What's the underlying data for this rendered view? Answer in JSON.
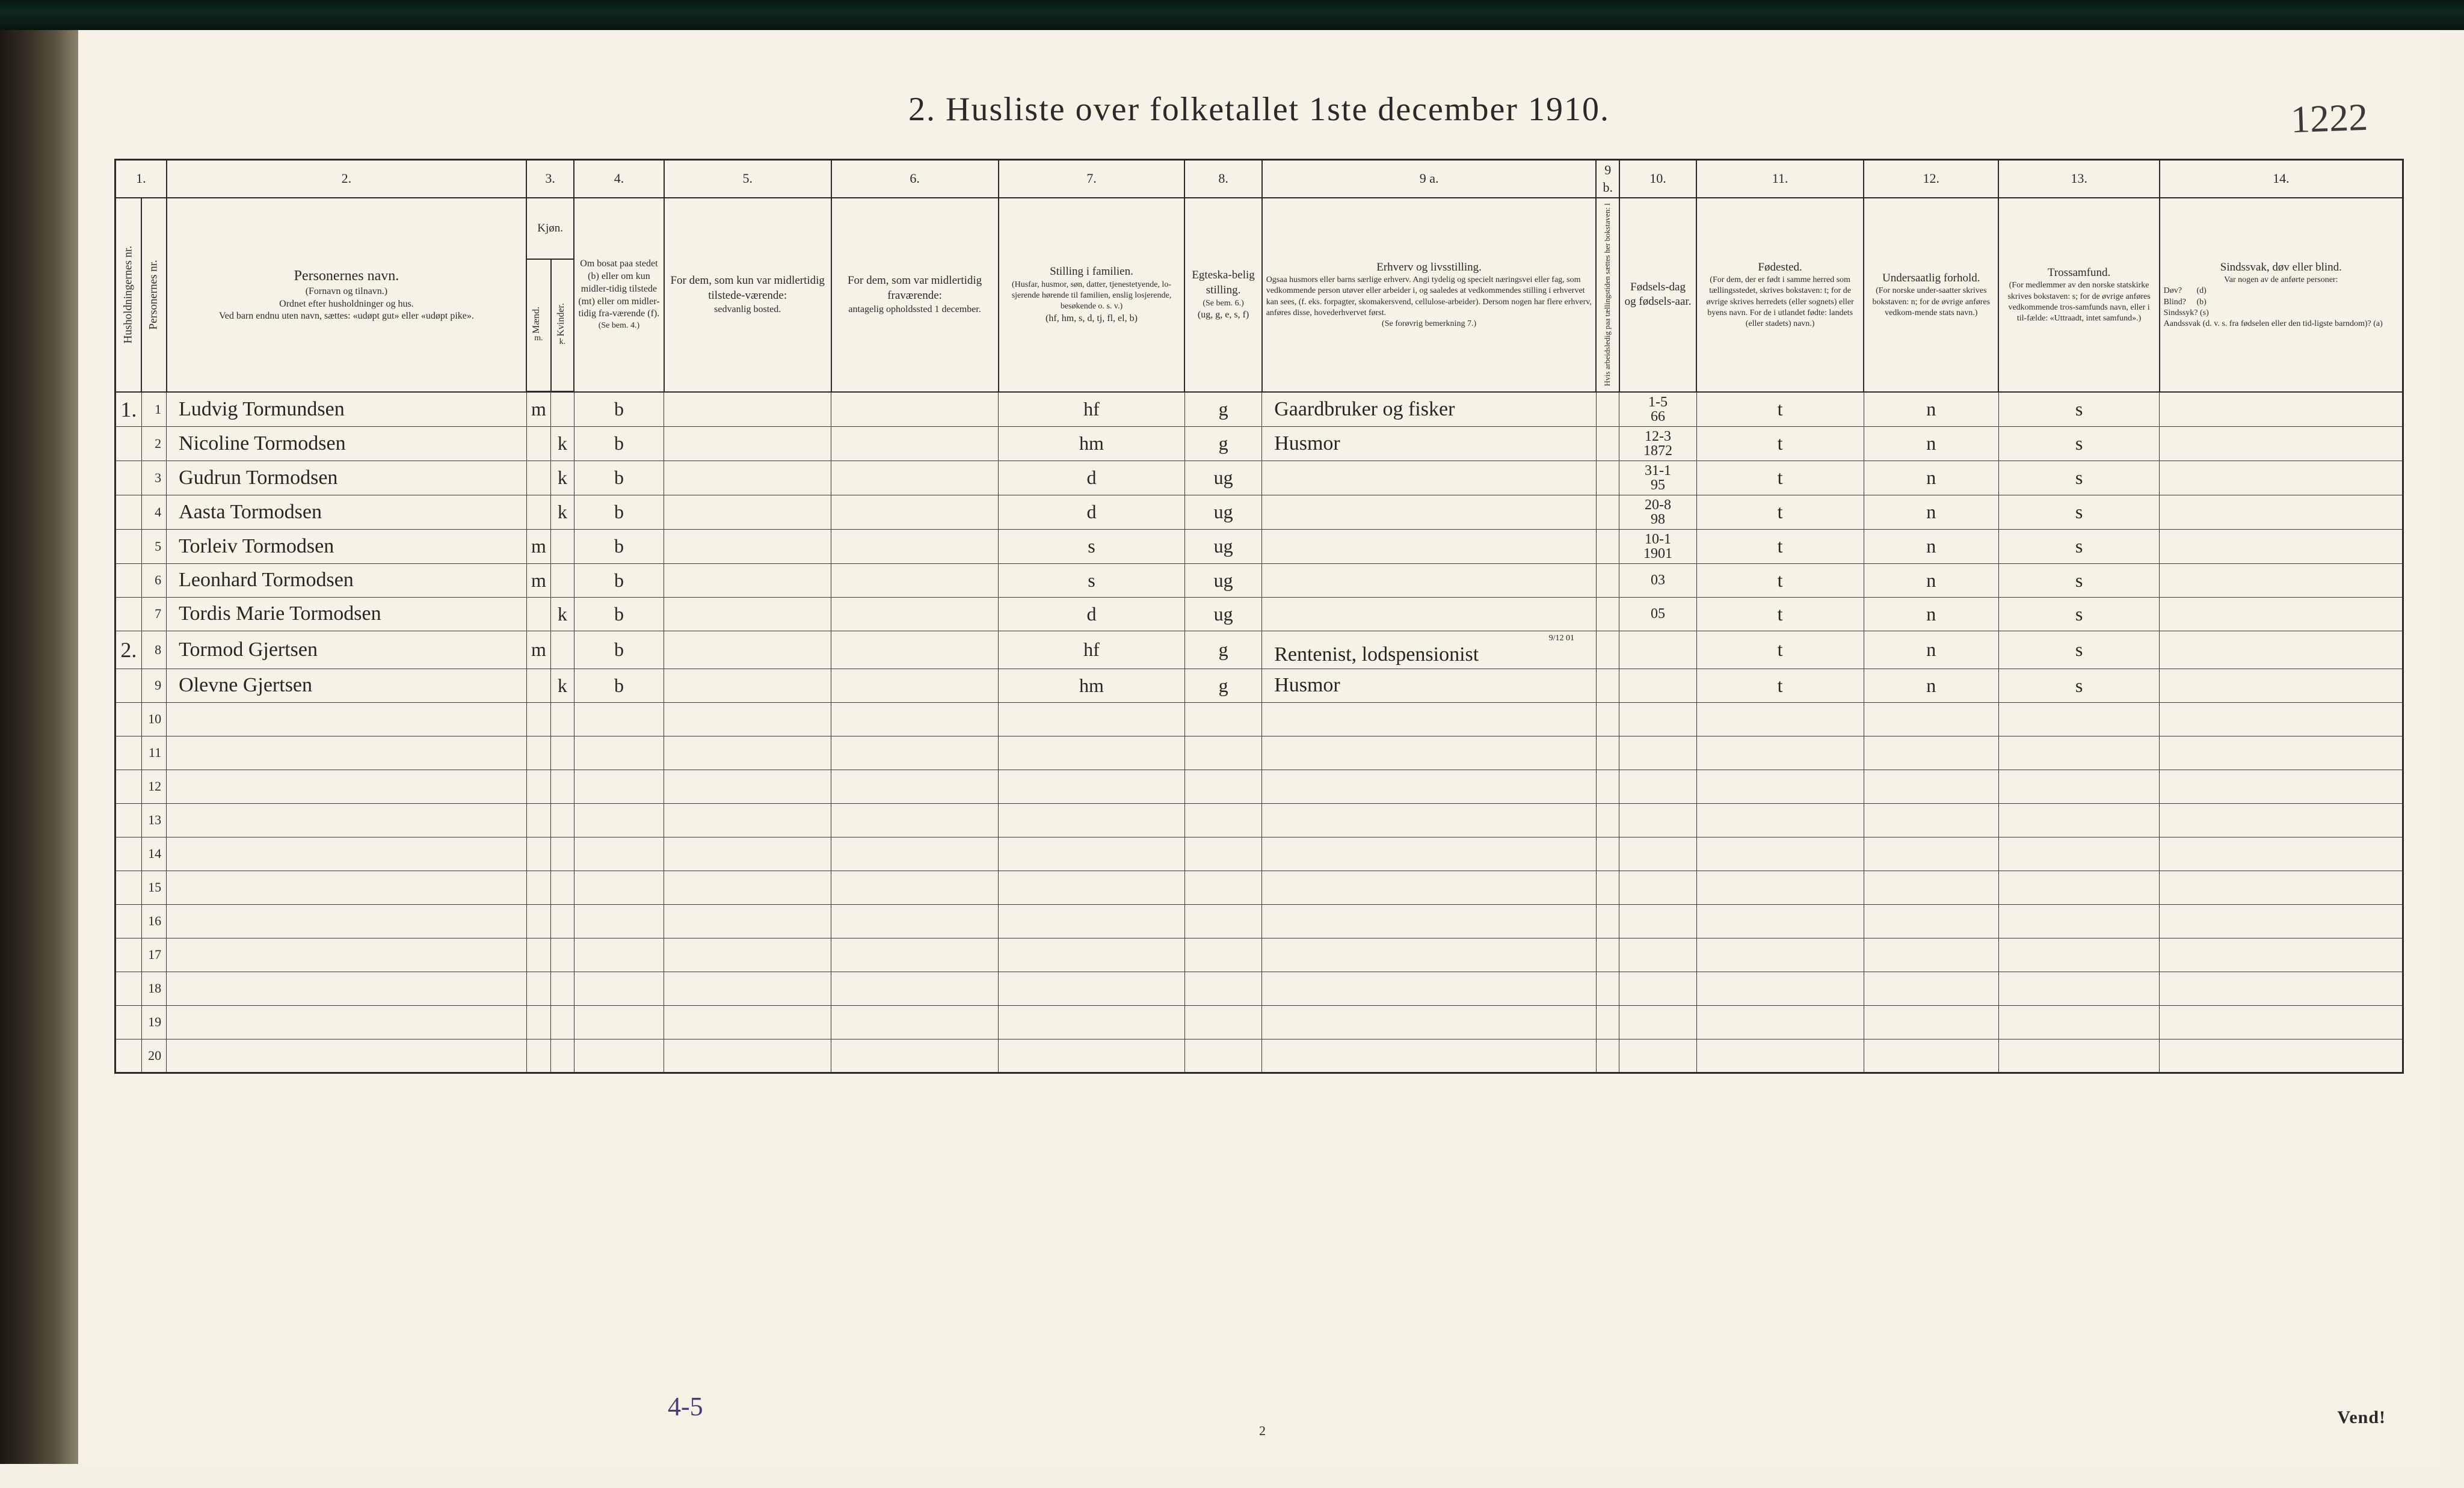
{
  "document": {
    "title": "2.   Husliste over folketallet 1ste december 1910.",
    "page_number_handwritten": "1222",
    "footer_handwritten": "4-5",
    "footer_page": "2",
    "footer_turn": "Vend!",
    "background_color": "#f6f2e6",
    "ink_color": "#2a2a2a",
    "handwriting_color": "#2a2520",
    "title_fontsize": 56
  },
  "columns": {
    "numbers": [
      "1.",
      "2.",
      "3.",
      "4.",
      "5.",
      "6.",
      "7.",
      "8.",
      "9 a.",
      "9 b.",
      "10.",
      "11.",
      "12.",
      "13.",
      "14."
    ],
    "c1a": "Husholdningernes nr.",
    "c1b": "Personernes nr.",
    "c2": {
      "title": "Personernes navn.",
      "sub1": "(Fornavn og tilnavn.)",
      "sub2": "Ordnet efter husholdninger og hus.",
      "sub3": "Ved barn endnu uten navn, sættes: «udøpt gut» eller «udøpt pike»."
    },
    "c3": {
      "title": "Kjøn.",
      "m": "Mænd.",
      "k": "Kvinder.",
      "mk": "m.  k."
    },
    "c4": {
      "title": "Om bosat paa stedet (b) eller om kun midler-tidig tilstede (mt) eller om midler-tidig fra-værende (f).",
      "sub": "(Se bem. 4.)"
    },
    "c5": {
      "title": "For dem, som kun var midlertidig tilstede-værende:",
      "sub": "sedvanlig bosted."
    },
    "c6": {
      "title": "For dem, som var midlertidig fraværende:",
      "sub": "antagelig opholdssted 1 december."
    },
    "c7": {
      "title": "Stilling i familien.",
      "sub1": "(Husfar, husmor, søn, datter, tjenestetyende, lo-sjerende hørende til familien, enslig losjerende, besøkende o. s. v.)",
      "sub2": "(hf, hm, s, d, tj, fl, el, b)"
    },
    "c8": {
      "title": "Egteska-belig stilling.",
      "sub1": "(Se bem. 6.)",
      "sub2": "(ug, g, e, s, f)"
    },
    "c9a": {
      "title": "Erhverv og livsstilling.",
      "sub": "Ogsaa husmors eller barns særlige erhverv. Angi tydelig og specielt næringsvei eller fag, som vedkommende person utøver eller arbeider i, og saaledes at vedkommendes stilling i erhvervet kan sees, (f. eks. forpagter, skomakersvend, cellulose-arbeider). Dersom nogen har flere erhverv, anføres disse, hovederhvervet først.",
      "sub2": "(Se forøvrig bemerkning 7.)"
    },
    "c9b": "Hvis arbeidsledig paa tællingstiden sættes her bokstaven: l",
    "c10": {
      "title": "Fødsels-dag og fødsels-aar."
    },
    "c11": {
      "title": "Fødested.",
      "sub": "(For dem, der er født i samme herred som tællingsstedet, skrives bokstaven: t; for de øvrige skrives herredets (eller sognets) eller byens navn. For de i utlandet fødte: landets (eller stadets) navn.)"
    },
    "c12": {
      "title": "Undersaatlig forhold.",
      "sub": "(For norske under-saatter skrives bokstaven: n; for de øvrige anføres vedkom-mende stats navn.)"
    },
    "c13": {
      "title": "Trossamfund.",
      "sub": "(For medlemmer av den norske statskirke skrives bokstaven: s; for de øvrige anføres vedkommende tros-samfunds navn, eller i til-fælde: «Uttraadt, intet samfund».)"
    },
    "c14": {
      "title": "Sindssvak, døv eller blind.",
      "sub1": "Var nogen av de anførte personer:",
      "sub2": "Døv?       (d)\nBlind?     (b)\nSindssyk? (s)\nAandssvak (d. v. s. fra fødselen eller den tid-ligste barndom)? (a)"
    }
  },
  "rows": [
    {
      "house": "1.",
      "nr": "1",
      "name": "Ludvig Tormundsen",
      "sex_m": "m",
      "sex_k": "",
      "bosat": "b",
      "c5": "",
      "c6": "",
      "stilling": "hf",
      "egte": "g",
      "erhverv": "Gaardbruker og fisker",
      "c9b": "",
      "fod": "1-5\n66",
      "fodested": "t",
      "under": "n",
      "tros": "s",
      "c14": ""
    },
    {
      "house": "",
      "nr": "2",
      "name": "Nicoline Tormodsen",
      "sex_m": "",
      "sex_k": "k",
      "bosat": "b",
      "c5": "",
      "c6": "",
      "stilling": "hm",
      "egte": "g",
      "erhverv": "Husmor",
      "c9b": "",
      "fod": "12-3\n1872",
      "fodested": "t",
      "under": "n",
      "tros": "s",
      "c14": ""
    },
    {
      "house": "",
      "nr": "3",
      "name": "Gudrun Tormodsen",
      "sex_m": "",
      "sex_k": "k",
      "bosat": "b",
      "c5": "",
      "c6": "",
      "stilling": "d",
      "egte": "ug",
      "erhverv": "",
      "c9b": "",
      "fod": "31-1\n95",
      "fodested": "t",
      "under": "n",
      "tros": "s",
      "c14": ""
    },
    {
      "house": "",
      "nr": "4",
      "name": "Aasta Tormodsen",
      "sex_m": "",
      "sex_k": "k",
      "bosat": "b",
      "c5": "",
      "c6": "",
      "stilling": "d",
      "egte": "ug",
      "erhverv": "",
      "c9b": "",
      "fod": "20-8\n98",
      "fodested": "t",
      "under": "n",
      "tros": "s",
      "c14": ""
    },
    {
      "house": "",
      "nr": "5",
      "name": "Torleiv Tormodsen",
      "sex_m": "m",
      "sex_k": "",
      "bosat": "b",
      "c5": "",
      "c6": "",
      "stilling": "s",
      "egte": "ug",
      "erhverv": "",
      "c9b": "",
      "fod": "10-1\n1901",
      "fodested": "t",
      "under": "n",
      "tros": "s",
      "c14": ""
    },
    {
      "house": "",
      "nr": "6",
      "name": "Leonhard  Tormodsen",
      "sex_m": "m",
      "sex_k": "",
      "bosat": "b",
      "c5": "",
      "c6": "",
      "stilling": "s",
      "egte": "ug",
      "erhverv": "",
      "c9b": "",
      "fod": "03",
      "fodested": "t",
      "under": "n",
      "tros": "s",
      "c14": ""
    },
    {
      "house": "",
      "nr": "7",
      "name": "Tordis Marie Tormodsen",
      "sex_m": "",
      "sex_k": "k",
      "bosat": "b",
      "c5": "",
      "c6": "",
      "stilling": "d",
      "egte": "ug",
      "erhverv": "",
      "c9b": "",
      "fod": "05",
      "fodested": "t",
      "under": "n",
      "tros": "s",
      "c14": ""
    },
    {
      "house": "2.",
      "nr": "8",
      "name": "Tormod Gjertsen",
      "sex_m": "m",
      "sex_k": "",
      "bosat": "b",
      "c5": "",
      "c6": "",
      "stilling": "hf",
      "egte": "g",
      "erhverv": "Rentenist, lodspensionist",
      "erhverv_note": "9/12 01",
      "c9b": "",
      "fod": "",
      "fodested": "t",
      "under": "n",
      "tros": "s",
      "c14": ""
    },
    {
      "house": "",
      "nr": "9",
      "name": "Olevne  Gjertsen",
      "sex_m": "",
      "sex_k": "k",
      "bosat": "b",
      "c5": "",
      "c6": "",
      "stilling": "hm",
      "egte": "g",
      "erhverv": "Husmor",
      "c9b": "",
      "fod": "",
      "fodested": "t",
      "under": "n",
      "tros": "s",
      "c14": ""
    },
    {
      "house": "",
      "nr": "10",
      "name": "",
      "sex_m": "",
      "sex_k": "",
      "bosat": "",
      "c5": "",
      "c6": "",
      "stilling": "",
      "egte": "",
      "erhverv": "",
      "c9b": "",
      "fod": "",
      "fodested": "",
      "under": "",
      "tros": "",
      "c14": ""
    },
    {
      "house": "",
      "nr": "11",
      "name": "",
      "sex_m": "",
      "sex_k": "",
      "bosat": "",
      "c5": "",
      "c6": "",
      "stilling": "",
      "egte": "",
      "erhverv": "",
      "c9b": "",
      "fod": "",
      "fodested": "",
      "under": "",
      "tros": "",
      "c14": ""
    },
    {
      "house": "",
      "nr": "12",
      "name": "",
      "sex_m": "",
      "sex_k": "",
      "bosat": "",
      "c5": "",
      "c6": "",
      "stilling": "",
      "egte": "",
      "erhverv": "",
      "c9b": "",
      "fod": "",
      "fodested": "",
      "under": "",
      "tros": "",
      "c14": ""
    },
    {
      "house": "",
      "nr": "13",
      "name": "",
      "sex_m": "",
      "sex_k": "",
      "bosat": "",
      "c5": "",
      "c6": "",
      "stilling": "",
      "egte": "",
      "erhverv": "",
      "c9b": "",
      "fod": "",
      "fodested": "",
      "under": "",
      "tros": "",
      "c14": ""
    },
    {
      "house": "",
      "nr": "14",
      "name": "",
      "sex_m": "",
      "sex_k": "",
      "bosat": "",
      "c5": "",
      "c6": "",
      "stilling": "",
      "egte": "",
      "erhverv": "",
      "c9b": "",
      "fod": "",
      "fodested": "",
      "under": "",
      "tros": "",
      "c14": ""
    },
    {
      "house": "",
      "nr": "15",
      "name": "",
      "sex_m": "",
      "sex_k": "",
      "bosat": "",
      "c5": "",
      "c6": "",
      "stilling": "",
      "egte": "",
      "erhverv": "",
      "c9b": "",
      "fod": "",
      "fodested": "",
      "under": "",
      "tros": "",
      "c14": ""
    },
    {
      "house": "",
      "nr": "16",
      "name": "",
      "sex_m": "",
      "sex_k": "",
      "bosat": "",
      "c5": "",
      "c6": "",
      "stilling": "",
      "egte": "",
      "erhverv": "",
      "c9b": "",
      "fod": "",
      "fodested": "",
      "under": "",
      "tros": "",
      "c14": ""
    },
    {
      "house": "",
      "nr": "17",
      "name": "",
      "sex_m": "",
      "sex_k": "",
      "bosat": "",
      "c5": "",
      "c6": "",
      "stilling": "",
      "egte": "",
      "erhverv": "",
      "c9b": "",
      "fod": "",
      "fodested": "",
      "under": "",
      "tros": "",
      "c14": ""
    },
    {
      "house": "",
      "nr": "18",
      "name": "",
      "sex_m": "",
      "sex_k": "",
      "bosat": "",
      "c5": "",
      "c6": "",
      "stilling": "",
      "egte": "",
      "erhverv": "",
      "c9b": "",
      "fod": "",
      "fodested": "",
      "under": "",
      "tros": "",
      "c14": ""
    },
    {
      "house": "",
      "nr": "19",
      "name": "",
      "sex_m": "",
      "sex_k": "",
      "bosat": "",
      "c5": "",
      "c6": "",
      "stilling": "",
      "egte": "",
      "erhverv": "",
      "c9b": "",
      "fod": "",
      "fodested": "",
      "under": "",
      "tros": "",
      "c14": ""
    },
    {
      "house": "",
      "nr": "20",
      "name": "",
      "sex_m": "",
      "sex_k": "",
      "bosat": "",
      "c5": "",
      "c6": "",
      "stilling": "",
      "egte": "",
      "erhverv": "",
      "c9b": "",
      "fod": "",
      "fodested": "",
      "under": "",
      "tros": "",
      "c14": ""
    }
  ]
}
